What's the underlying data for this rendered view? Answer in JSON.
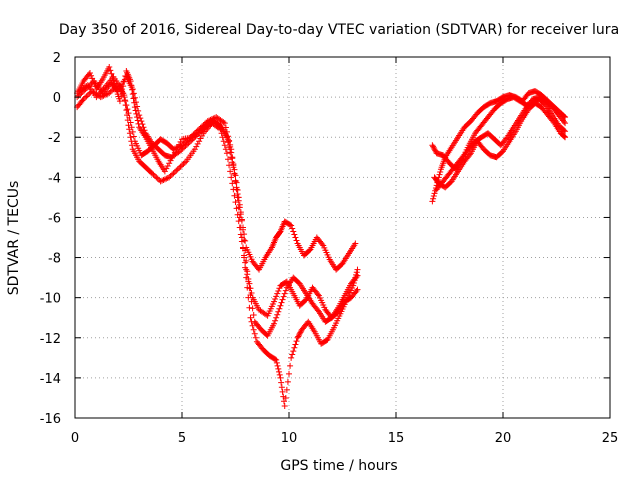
{
  "chart_data": {
    "type": "scatter",
    "title": "Day 350 of 2016, Sidereal Day-to-day VTEC variation (SDTVAR) for receiver lura",
    "xlabel": "GPS time / hours",
    "ylabel": "SDTVAR / TECUs",
    "xlim": [
      0,
      25
    ],
    "ylim": [
      -16,
      2
    ],
    "xticks": [
      0,
      5,
      10,
      15,
      20,
      25
    ],
    "yticks": [
      2,
      0,
      -2,
      -4,
      -6,
      -8,
      -10,
      -12,
      -14,
      -16
    ],
    "grid": true,
    "marker": "plus",
    "color": "#ff0000",
    "series": [
      {
        "x": [
          0.1,
          0.4,
          0.7,
          1.0,
          1.3,
          1.6,
          1.9,
          2.1,
          2.4,
          2.6,
          2.8,
          3.0,
          3.3,
          3.6,
          3.9,
          4.2,
          4.6,
          5.0,
          5.5,
          6.0,
          6.4,
          6.8,
          7.1,
          7.4,
          7.7,
          8.0,
          8.3,
          8.6,
          8.9,
          9.2,
          9.4,
          9.6,
          9.8,
          10.1,
          10.4,
          10.7,
          11.0,
          11.3,
          11.6,
          11.9,
          12.2,
          12.5,
          12.8,
          13.1
        ],
        "y": [
          0.2,
          0.8,
          1.2,
          0.4,
          0.9,
          1.5,
          0.5,
          -0.2,
          1.3,
          0.8,
          -0.5,
          -1.5,
          -2.0,
          -2.6,
          -3.2,
          -3.7,
          -2.9,
          -2.1,
          -2.0,
          -1.5,
          -1.1,
          -1.4,
          -2.0,
          -3.5,
          -5.5,
          -7.5,
          -8.2,
          -8.6,
          -8.0,
          -7.5,
          -7.0,
          -6.7,
          -6.2,
          -6.4,
          -7.3,
          -7.9,
          -7.6,
          -7.0,
          -7.4,
          -8.1,
          -8.6,
          -8.3,
          -7.8,
          -7.3
        ]
      },
      {
        "x": [
          0.1,
          0.4,
          0.8,
          1.2,
          1.6,
          2.0,
          2.3,
          2.5,
          2.7,
          3.0,
          3.3,
          3.6,
          4.0,
          4.4,
          4.8,
          5.2,
          5.6,
          6.0,
          6.4,
          6.8,
          7.1,
          7.4,
          7.7,
          8.0,
          8.3,
          8.6,
          9.0,
          9.3,
          9.6,
          9.9,
          10.2,
          10.5,
          10.8,
          11.1,
          11.4,
          11.7,
          12.0,
          12.3,
          12.6,
          12.9,
          13.2
        ],
        "y": [
          -0.5,
          -0.1,
          0.3,
          0.0,
          0.2,
          0.6,
          0.1,
          -1.4,
          -2.6,
          -3.2,
          -3.5,
          -3.8,
          -4.2,
          -4.0,
          -3.6,
          -3.2,
          -2.6,
          -1.8,
          -1.3,
          -1.6,
          -2.8,
          -4.6,
          -6.5,
          -8.6,
          -10.0,
          -10.6,
          -10.9,
          -10.2,
          -9.4,
          -9.2,
          -9.8,
          -10.4,
          -10.1,
          -9.5,
          -9.9,
          -10.6,
          -11.0,
          -10.7,
          -10.2,
          -10.0,
          -9.6
        ]
      },
      {
        "x": [
          0.2,
          0.6,
          1.0,
          1.4,
          1.8,
          2.2,
          2.5,
          2.8,
          3.1,
          3.4,
          3.7,
          4.0,
          4.3,
          4.6,
          5.0,
          5.4,
          5.8,
          6.2,
          6.6,
          7.0,
          7.3,
          7.6,
          7.9,
          8.2,
          8.5,
          8.8,
          9.1,
          9.4,
          9.6,
          9.8,
          10.1,
          10.4,
          10.6,
          10.9,
          11.2,
          11.5,
          11.8,
          12.1,
          12.4,
          12.7,
          13.0,
          13.2
        ],
        "y": [
          0.3,
          0.6,
          0.0,
          0.5,
          1.0,
          0.4,
          -0.8,
          -2.2,
          -2.9,
          -2.7,
          -2.4,
          -2.1,
          -2.3,
          -2.6,
          -2.4,
          -2.0,
          -1.6,
          -1.2,
          -1.0,
          -1.3,
          -2.6,
          -5.0,
          -8.0,
          -11.0,
          -12.2,
          -12.6,
          -12.9,
          -13.1,
          -14.0,
          -15.4,
          -13.0,
          -12.0,
          -11.6,
          -11.2,
          -11.7,
          -12.3,
          -12.1,
          -11.5,
          -10.8,
          -10.1,
          -9.4,
          -8.6
        ]
      },
      {
        "x": [
          0.1,
          0.5,
          0.9,
          1.3,
          1.7,
          2.0,
          2.4,
          2.7,
          3.0,
          3.3,
          3.6,
          3.9,
          4.2,
          4.5,
          4.9,
          5.3,
          5.7,
          6.1,
          6.5,
          6.9,
          7.2,
          7.5,
          7.8,
          8.1,
          8.4,
          8.7,
          9.0,
          9.3,
          9.6,
          9.9,
          10.2,
          10.5,
          10.8,
          11.1,
          11.4,
          11.7,
          12.0,
          12.3,
          12.6,
          12.9,
          13.2
        ],
        "y": [
          0.0,
          0.4,
          0.8,
          0.2,
          0.7,
          0.3,
          1.0,
          0.4,
          -0.9,
          -1.8,
          -2.3,
          -2.6,
          -2.9,
          -3.0,
          -2.7,
          -2.3,
          -1.9,
          -1.5,
          -1.2,
          -1.6,
          -2.2,
          -3.9,
          -6.1,
          -9.2,
          -11.2,
          -11.6,
          -11.9,
          -11.3,
          -10.4,
          -9.5,
          -9.0,
          -9.3,
          -9.8,
          -10.3,
          -10.7,
          -11.2,
          -11.0,
          -10.5,
          -9.9,
          -9.3,
          -8.9
        ]
      },
      {
        "x": [
          16.7,
          16.9,
          17.1,
          17.3,
          17.6,
          17.9,
          18.2,
          18.5,
          18.8,
          19.1,
          19.4,
          19.7,
          20.0,
          20.3,
          20.6,
          20.9,
          21.2,
          21.5,
          21.8,
          22.1,
          22.4,
          22.7,
          22.9
        ],
        "y": [
          -5.2,
          -4.4,
          -3.6,
          -3.0,
          -2.5,
          -2.0,
          -1.5,
          -1.2,
          -0.8,
          -0.5,
          -0.3,
          -0.2,
          0.0,
          0.1,
          0.0,
          -0.2,
          0.2,
          0.3,
          0.1,
          -0.2,
          -0.5,
          -0.8,
          -1.0
        ]
      },
      {
        "x": [
          16.7,
          16.9,
          17.2,
          17.5,
          17.8,
          18.1,
          18.4,
          18.7,
          19.0,
          19.3,
          19.6,
          19.9,
          20.2,
          20.5,
          20.8,
          21.1,
          21.4,
          21.7,
          22.0,
          22.3,
          22.6,
          22.9
        ],
        "y": [
          -2.4,
          -2.8,
          -2.9,
          -3.3,
          -3.6,
          -3.1,
          -2.4,
          -1.8,
          -1.4,
          -1.0,
          -0.6,
          -0.3,
          -0.1,
          0.0,
          -0.2,
          -0.4,
          -0.3,
          -0.1,
          -0.4,
          -0.9,
          -1.4,
          -1.7
        ]
      },
      {
        "x": [
          16.8,
          17.0,
          17.3,
          17.6,
          17.9,
          18.2,
          18.5,
          18.8,
          19.1,
          19.4,
          19.7,
          20.0,
          20.3,
          20.6,
          20.9,
          21.2,
          21.5,
          21.8,
          22.1,
          22.4,
          22.7,
          22.9
        ],
        "y": [
          -4.0,
          -4.3,
          -4.5,
          -4.2,
          -3.7,
          -3.2,
          -2.8,
          -2.2,
          -2.6,
          -2.9,
          -3.0,
          -2.7,
          -2.2,
          -1.7,
          -1.1,
          -0.6,
          -0.3,
          -0.5,
          -0.9,
          -1.3,
          -1.8,
          -2.0
        ]
      },
      {
        "x": [
          16.9,
          17.2,
          17.5,
          17.8,
          18.1,
          18.4,
          18.7,
          19.0,
          19.3,
          19.6,
          19.9,
          20.2,
          20.5,
          20.8,
          21.1,
          21.4,
          21.7,
          22.0,
          22.3,
          22.6,
          22.9
        ],
        "y": [
          -4.6,
          -4.2,
          -3.8,
          -3.4,
          -3.0,
          -2.6,
          -2.2,
          -2.0,
          -1.8,
          -2.1,
          -2.4,
          -2.0,
          -1.5,
          -1.0,
          -0.5,
          -0.1,
          0.0,
          -0.2,
          -0.5,
          -0.9,
          -1.3
        ]
      }
    ]
  }
}
